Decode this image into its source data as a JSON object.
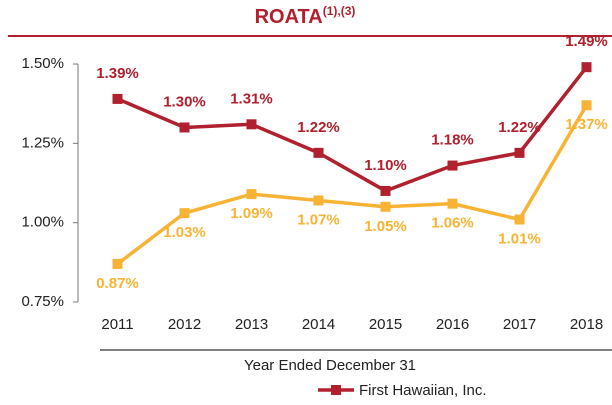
{
  "chart_data": {
    "type": "line",
    "title": "ROATA",
    "title_superscript": "(1),(3)",
    "xlabel": "Year Ended December 31",
    "categories": [
      "2011",
      "2012",
      "2013",
      "2014",
      "2015",
      "2016",
      "2017",
      "2018"
    ],
    "series": [
      {
        "name": "First Hawaiian, Inc.",
        "color": "#b0202e",
        "values": [
          1.39,
          1.3,
          1.31,
          1.22,
          1.1,
          1.18,
          1.22,
          1.49
        ],
        "value_labels": [
          "1.39%",
          "1.30%",
          "1.31%",
          "1.22%",
          "1.10%",
          "1.18%",
          "1.22%",
          "1.49%"
        ]
      },
      {
        "color": "#f8b334",
        "values": [
          0.87,
          1.03,
          1.09,
          1.07,
          1.05,
          1.06,
          1.01,
          1.37
        ],
        "value_labels": [
          "0.87%",
          "1.03%",
          "1.09%",
          "1.07%",
          "1.05%",
          "1.06%",
          "1.01%",
          "1.37%"
        ]
      }
    ],
    "ylim": [
      0.75,
      1.5
    ],
    "yticks": [
      {
        "value": 0.75,
        "label": "0.75%"
      },
      {
        "value": 1.0,
        "label": "1.00%"
      },
      {
        "value": 1.25,
        "label": "1.25%"
      },
      {
        "value": 1.5,
        "label": "1.50%"
      }
    ],
    "grid": false,
    "legend": "bottom"
  }
}
